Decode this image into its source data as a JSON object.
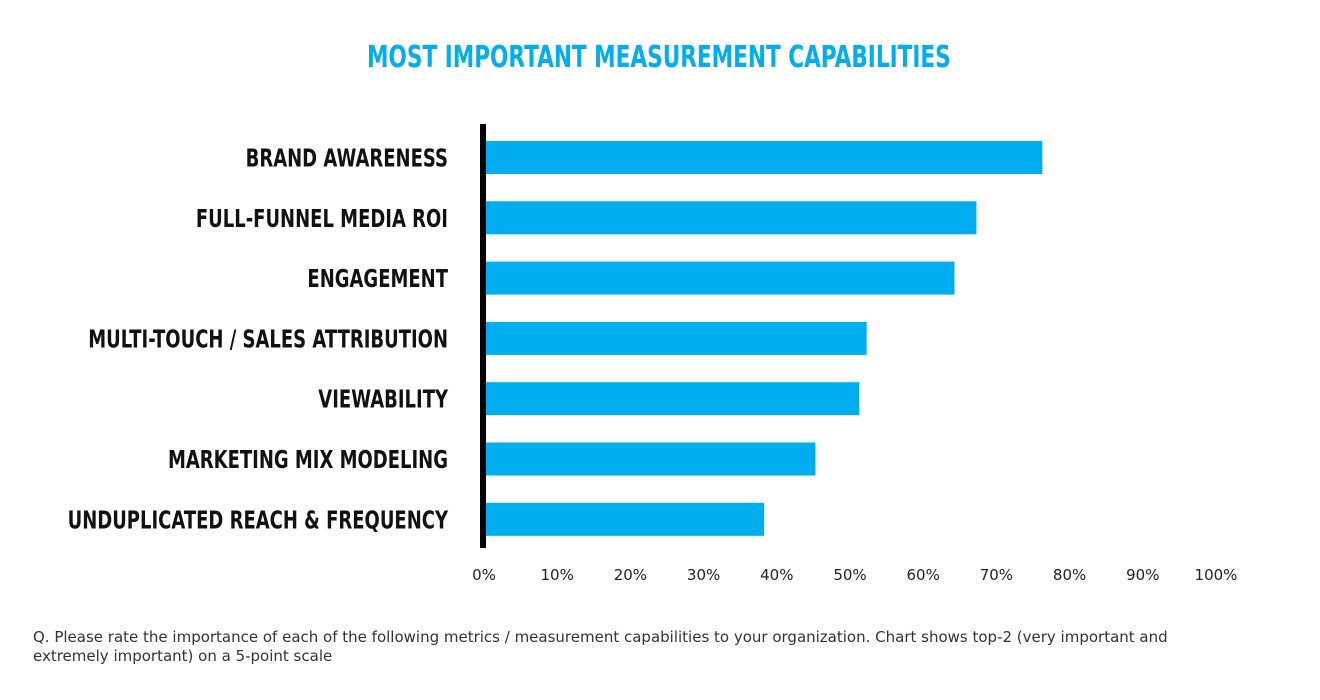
{
  "chart_data": {
    "type": "bar",
    "orientation": "horizontal",
    "title": "MOST IMPORTANT MEASUREMENT CAPABILITIES",
    "categories": [
      "BRAND AWARENESS",
      "FULL-FUNNEL MEDIA ROI",
      "ENGAGEMENT",
      "MULTI-TOUCH / SALES ATTRIBUTION",
      "VIEWABILITY",
      "MARKETING MIX MODELING",
      "UNDUPLICATED REACH & FREQUENCY"
    ],
    "values": [
      76,
      67,
      64,
      52,
      51,
      45,
      38
    ],
    "xlim": [
      0,
      100
    ],
    "xticks": [
      "0%",
      "10%",
      "20%",
      "30%",
      "40%",
      "50%",
      "60%",
      "70%",
      "80%",
      "90%",
      "100%"
    ],
    "grid": false,
    "bar_color": "#00adef",
    "axis_color": "#000000"
  },
  "footnote": "Q. Please rate the importance of each of the following metrics / measurement capabilities to your organization. Chart shows top-2 (very important and extremely important) on a 5-point scale"
}
